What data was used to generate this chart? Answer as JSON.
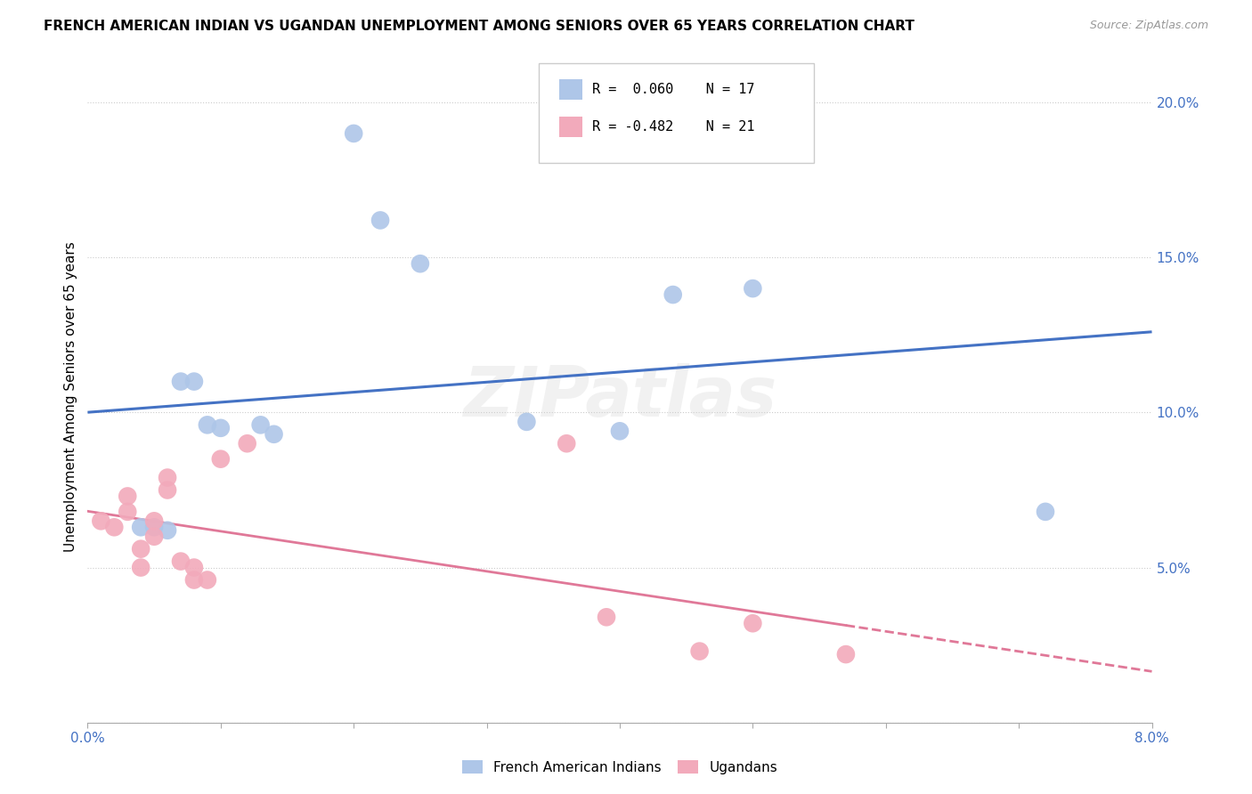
{
  "title": "FRENCH AMERICAN INDIAN VS UGANDAN UNEMPLOYMENT AMONG SENIORS OVER 65 YEARS CORRELATION CHART",
  "source": "Source: ZipAtlas.com",
  "ylabel": "Unemployment Among Seniors over 65 years",
  "xlim": [
    0.0,
    0.08
  ],
  "ylim": [
    0.0,
    0.21
  ],
  "xticks": [
    0.0,
    0.01,
    0.02,
    0.03,
    0.04,
    0.05,
    0.06,
    0.07,
    0.08
  ],
  "yticks": [
    0.0,
    0.05,
    0.1,
    0.15,
    0.2
  ],
  "blue_R": 0.06,
  "blue_N": 17,
  "pink_R": -0.482,
  "pink_N": 21,
  "blue_color": "#aec6e8",
  "pink_color": "#f2aabb",
  "blue_line_color": "#4472c4",
  "pink_line_color": "#e07898",
  "watermark": "ZIPatlas",
  "blue_scatter_x": [
    0.004,
    0.005,
    0.006,
    0.007,
    0.008,
    0.009,
    0.01,
    0.013,
    0.014,
    0.02,
    0.022,
    0.025,
    0.033,
    0.04,
    0.044,
    0.05,
    0.072
  ],
  "blue_scatter_y": [
    0.063,
    0.063,
    0.062,
    0.11,
    0.11,
    0.096,
    0.095,
    0.096,
    0.093,
    0.19,
    0.162,
    0.148,
    0.097,
    0.094,
    0.138,
    0.14,
    0.068
  ],
  "pink_scatter_x": [
    0.001,
    0.002,
    0.003,
    0.003,
    0.004,
    0.004,
    0.005,
    0.005,
    0.006,
    0.006,
    0.007,
    0.008,
    0.008,
    0.009,
    0.01,
    0.012,
    0.036,
    0.039,
    0.046,
    0.05,
    0.057
  ],
  "pink_scatter_y": [
    0.065,
    0.063,
    0.073,
    0.068,
    0.056,
    0.05,
    0.065,
    0.06,
    0.079,
    0.075,
    0.052,
    0.05,
    0.046,
    0.046,
    0.085,
    0.09,
    0.09,
    0.034,
    0.023,
    0.032,
    0.022
  ]
}
